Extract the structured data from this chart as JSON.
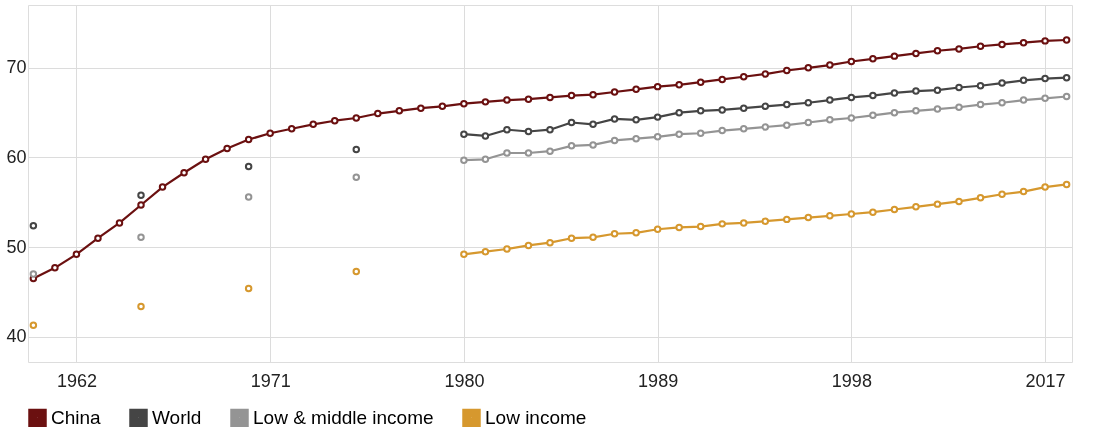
{
  "chart_data": {
    "type": "line",
    "categories": [
      null,
      null,
      "1962",
      null,
      null,
      null,
      null,
      null,
      null,
      null,
      null,
      "1971",
      null,
      null,
      null,
      null,
      null,
      null,
      null,
      null,
      "1980",
      null,
      null,
      null,
      null,
      null,
      null,
      null,
      null,
      "1989",
      null,
      null,
      null,
      null,
      null,
      null,
      null,
      null,
      "1998",
      null,
      null,
      null,
      null,
      null,
      null,
      null,
      null,
      "2017",
      null
    ],
    "ylim": [
      37.2,
      77
    ],
    "yticks": [
      40,
      50,
      60,
      70
    ],
    "grid": true,
    "legend": "bottom",
    "marker": "circle",
    "line_style": "solid",
    "series": [
      {
        "name": "China",
        "color": "#6b1010",
        "values": [
          46.5,
          47.7,
          49.2,
          51.0,
          52.7,
          54.7,
          56.7,
          58.3,
          59.8,
          61.0,
          62.0,
          62.7,
          63.2,
          63.7,
          64.1,
          64.4,
          64.9,
          65.2,
          65.5,
          65.7,
          66.0,
          66.2,
          66.4,
          66.5,
          66.7,
          66.9,
          67.0,
          67.3,
          67.6,
          67.9,
          68.1,
          68.4,
          68.7,
          69.0,
          69.3,
          69.7,
          70.0,
          70.3,
          70.7,
          71.0,
          71.3,
          71.6,
          71.9,
          72.1,
          72.4,
          72.6,
          72.8,
          73.0,
          73.1
        ]
      },
      {
        "name": "World",
        "color": "#454545",
        "values": [
          52.4,
          null,
          null,
          null,
          null,
          55.8,
          null,
          null,
          null,
          null,
          59.0,
          null,
          null,
          null,
          null,
          60.9,
          null,
          null,
          null,
          null,
          62.6,
          62.4,
          63.1,
          62.9,
          63.1,
          63.9,
          63.7,
          64.3,
          64.2,
          64.5,
          65.0,
          65.2,
          65.3,
          65.5,
          65.7,
          65.9,
          66.1,
          66.4,
          66.7,
          66.9,
          67.2,
          67.4,
          67.5,
          67.8,
          68.0,
          68.3,
          68.6,
          68.8,
          68.9
        ]
      },
      {
        "name": "Low & middle income",
        "color": "#949494",
        "values": [
          47.0,
          null,
          null,
          null,
          null,
          51.1,
          null,
          null,
          null,
          null,
          55.6,
          null,
          null,
          null,
          null,
          57.8,
          null,
          null,
          null,
          null,
          59.7,
          59.8,
          60.5,
          60.5,
          60.7,
          61.3,
          61.4,
          61.9,
          62.1,
          62.3,
          62.6,
          62.7,
          63.0,
          63.2,
          63.4,
          63.6,
          63.9,
          64.2,
          64.4,
          64.7,
          65.0,
          65.2,
          65.4,
          65.6,
          65.9,
          66.1,
          66.4,
          66.6,
          66.8
        ]
      },
      {
        "name": "Low income",
        "color": "#d6982e",
        "values": [
          41.3,
          null,
          null,
          null,
          null,
          43.4,
          null,
          null,
          null,
          null,
          45.4,
          null,
          null,
          null,
          null,
          47.3,
          null,
          null,
          null,
          null,
          49.2,
          49.5,
          49.8,
          50.2,
          50.5,
          51.0,
          51.1,
          51.5,
          51.6,
          52.0,
          52.2,
          52.3,
          52.6,
          52.7,
          52.9,
          53.1,
          53.3,
          53.5,
          53.7,
          53.9,
          54.2,
          54.5,
          54.8,
          55.1,
          55.5,
          55.9,
          56.2,
          56.7,
          57.0
        ]
      }
    ]
  }
}
